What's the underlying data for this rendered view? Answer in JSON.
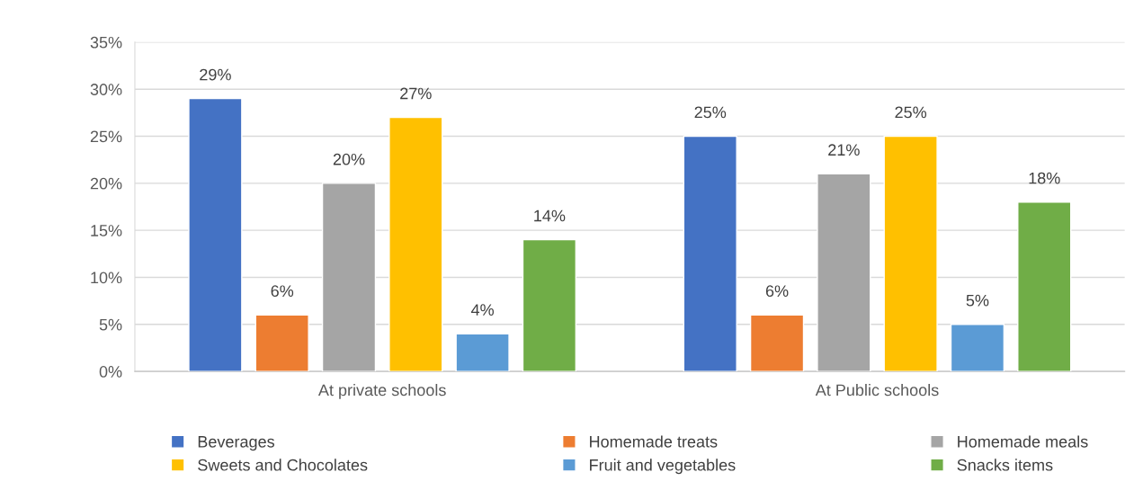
{
  "chart_data": {
    "type": "bar",
    "categories": [
      "At private schools",
      "At Public schools"
    ],
    "series": [
      {
        "name": "Beverages",
        "color": "#4472c4",
        "values": [
          29,
          25
        ],
        "value_labels": [
          "29%",
          "25%"
        ]
      },
      {
        "name": "Homemade treats",
        "color": "#ed7d31",
        "values": [
          6,
          6
        ],
        "value_labels": [
          "6%",
          "6%"
        ]
      },
      {
        "name": "Homemade meals",
        "color": "#a5a5a5",
        "values": [
          20,
          21
        ],
        "value_labels": [
          "20%",
          "21%"
        ]
      },
      {
        "name": "Sweets and Chocolates",
        "color": "#ffc000",
        "values": [
          27,
          25
        ],
        "value_labels": [
          "27%",
          "25%"
        ]
      },
      {
        "name": "Fruit and vegetables",
        "color": "#5b9bd5",
        "values": [
          4,
          5
        ],
        "value_labels": [
          "4%",
          "5%"
        ]
      },
      {
        "name": "Snacks items",
        "color": "#70ad47",
        "values": [
          14,
          18
        ],
        "value_labels": [
          "14%",
          "18%"
        ]
      }
    ],
    "ylim": [
      0,
      35
    ],
    "yticks": [
      {
        "value": 0,
        "label": "0%"
      },
      {
        "value": 5,
        "label": "5%"
      },
      {
        "value": 10,
        "label": "10%"
      },
      {
        "value": 15,
        "label": "15%"
      },
      {
        "value": 20,
        "label": "20%"
      },
      {
        "value": 25,
        "label": "25%"
      },
      {
        "value": 30,
        "label": "30%"
      },
      {
        "value": 35,
        "label": "35%"
      }
    ],
    "grid": "y",
    "legend": "bottom"
  }
}
